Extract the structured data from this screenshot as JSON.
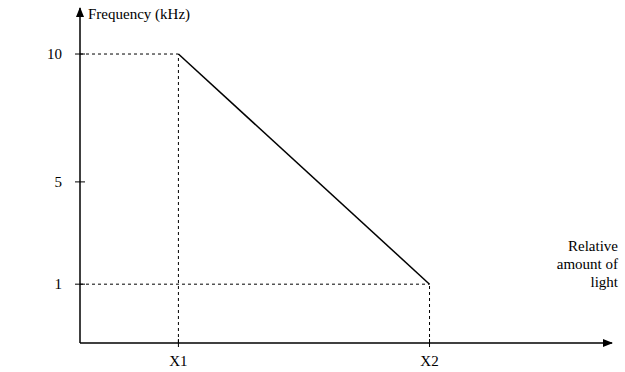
{
  "chart_data": {
    "type": "line",
    "y_label": "Frequency (kHz)",
    "x_label": "Relative amount of light",
    "categories": [
      "X1",
      "X2"
    ],
    "values": [
      10,
      1
    ],
    "color": "#000000",
    "line_style": "solid",
    "ylim": [
      -1.3,
      11.8
    ],
    "yticks": [
      1,
      5,
      10
    ]
  }
}
